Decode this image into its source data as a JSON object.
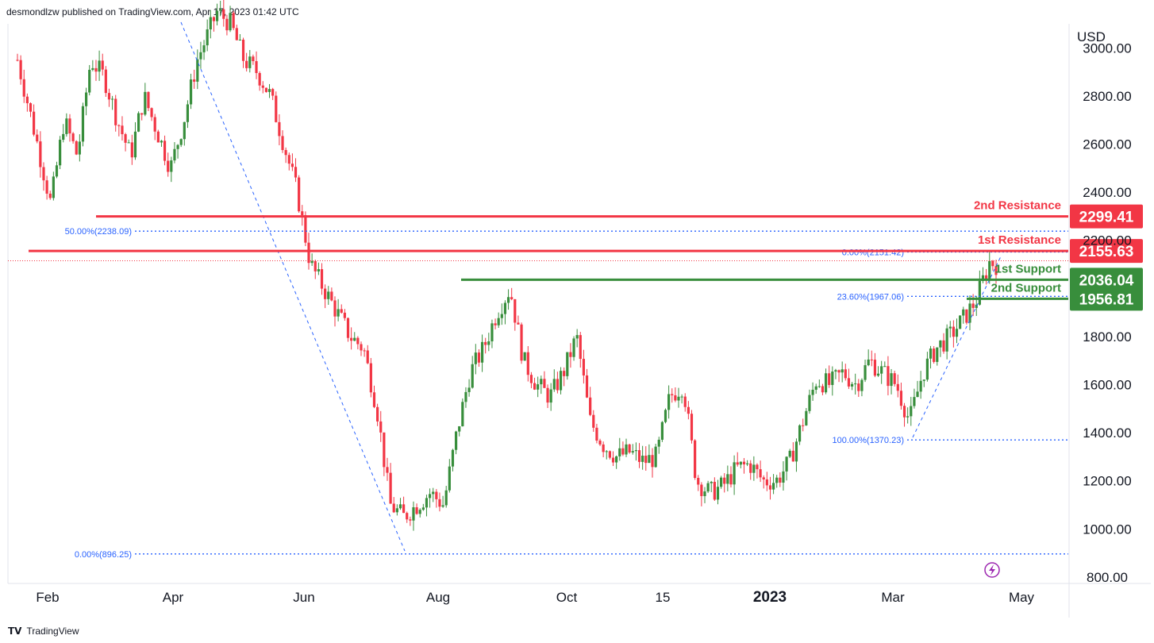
{
  "header": {
    "text": "desmondlzw published on TradingView.com, Apr 17, 2023 01:42 UTC"
  },
  "footer": {
    "brand": "TradingView"
  },
  "axis": {
    "currency": "USD"
  },
  "chart_data": {
    "type": "candlestick",
    "title": "",
    "y_range": [
      780,
      3100
    ],
    "y_ticks": [
      800,
      1000,
      1200,
      1400,
      1600,
      1800,
      2000,
      2200,
      2400,
      2600,
      2800,
      3000
    ],
    "y_tick_labels": [
      "800.00",
      "1000.00",
      "1200.00",
      "1400.00",
      "1600.00",
      "1800.00",
      "",
      "2200.00",
      "2400.00",
      "2600.00",
      "2800.00",
      "3000.00"
    ],
    "x_labels": [
      "Feb",
      "Apr",
      "Jun",
      "Aug",
      "Oct",
      "15",
      "2023",
      "Mar",
      "May"
    ],
    "levels": [
      {
        "label": "2nd Resistance",
        "value": 2299.41,
        "value_label": "2299.41",
        "color": "#f23645"
      },
      {
        "label": "1st Resistance",
        "value": 2155.63,
        "value_label": "2155.63",
        "color": "#f23645"
      },
      {
        "label": "1st Support",
        "value": 2036.04,
        "value_label": "2036.04",
        "color": "#388e3c"
      },
      {
        "label": "2nd Support",
        "value": 1956.81,
        "value_label": "1956.81",
        "color": "#388e3c"
      }
    ],
    "fib_levels": [
      {
        "label": "50.00%(2238.09)",
        "value": 2238.09
      },
      {
        "label": "0.00%(2151.42)",
        "value": 2151.42
      },
      {
        "label": "23.60%(1967.06)",
        "value": 1967.06
      },
      {
        "label": "100.00%(1370.23)",
        "value": 1370.23
      },
      {
        "label": "0.00%(896.25)",
        "value": 896.25
      }
    ],
    "price_path": [
      [
        0,
        2950
      ],
      [
        3,
        2600
      ],
      [
        5,
        2350
      ],
      [
        7,
        2700
      ],
      [
        9,
        2550
      ],
      [
        11,
        2950
      ],
      [
        13,
        2880
      ],
      [
        15,
        2700
      ],
      [
        17,
        2550
      ],
      [
        19,
        2800
      ],
      [
        21,
        2650
      ],
      [
        23,
        2500
      ],
      [
        25,
        2700
      ],
      [
        27,
        2950
      ],
      [
        30,
        3150
      ],
      [
        32,
        3100
      ],
      [
        34,
        2950
      ],
      [
        36,
        2900
      ],
      [
        38,
        2800
      ],
      [
        40,
        2600
      ],
      [
        42,
        2400
      ],
      [
        44,
        2100
      ],
      [
        46,
        2000
      ],
      [
        48,
        1900
      ],
      [
        50,
        1800
      ],
      [
        52,
        1750
      ],
      [
        54,
        1500
      ],
      [
        56,
        1100
      ],
      [
        58,
        1050
      ],
      [
        60,
        1100
      ],
      [
        62,
        1150
      ],
      [
        64,
        1100
      ],
      [
        66,
        1400
      ],
      [
        68,
        1650
      ],
      [
        70,
        1750
      ],
      [
        72,
        1900
      ],
      [
        74,
        2000
      ],
      [
        76,
        1700
      ],
      [
        78,
        1600
      ],
      [
        80,
        1550
      ],
      [
        82,
        1650
      ],
      [
        84,
        1800
      ],
      [
        86,
        1450
      ],
      [
        88,
        1350
      ],
      [
        90,
        1300
      ],
      [
        92,
        1320
      ],
      [
        94,
        1280
      ],
      [
        96,
        1300
      ],
      [
        98,
        1550
      ],
      [
        100,
        1600
      ],
      [
        102,
        1200
      ],
      [
        104,
        1150
      ],
      [
        106,
        1180
      ],
      [
        108,
        1250
      ],
      [
        110,
        1270
      ],
      [
        112,
        1200
      ],
      [
        114,
        1200
      ],
      [
        116,
        1280
      ],
      [
        118,
        1450
      ],
      [
        120,
        1620
      ],
      [
        122,
        1600
      ],
      [
        124,
        1650
      ],
      [
        126,
        1600
      ],
      [
        128,
        1700
      ],
      [
        130,
        1650
      ],
      [
        132,
        1600
      ],
      [
        134,
        1450
      ],
      [
        136,
        1650
      ],
      [
        138,
        1750
      ],
      [
        140,
        1800
      ],
      [
        142,
        1870
      ],
      [
        144,
        1950
      ],
      [
        146,
        2110
      ],
      [
        147,
        2100
      ]
    ]
  },
  "status_icon": "lightning-icon"
}
